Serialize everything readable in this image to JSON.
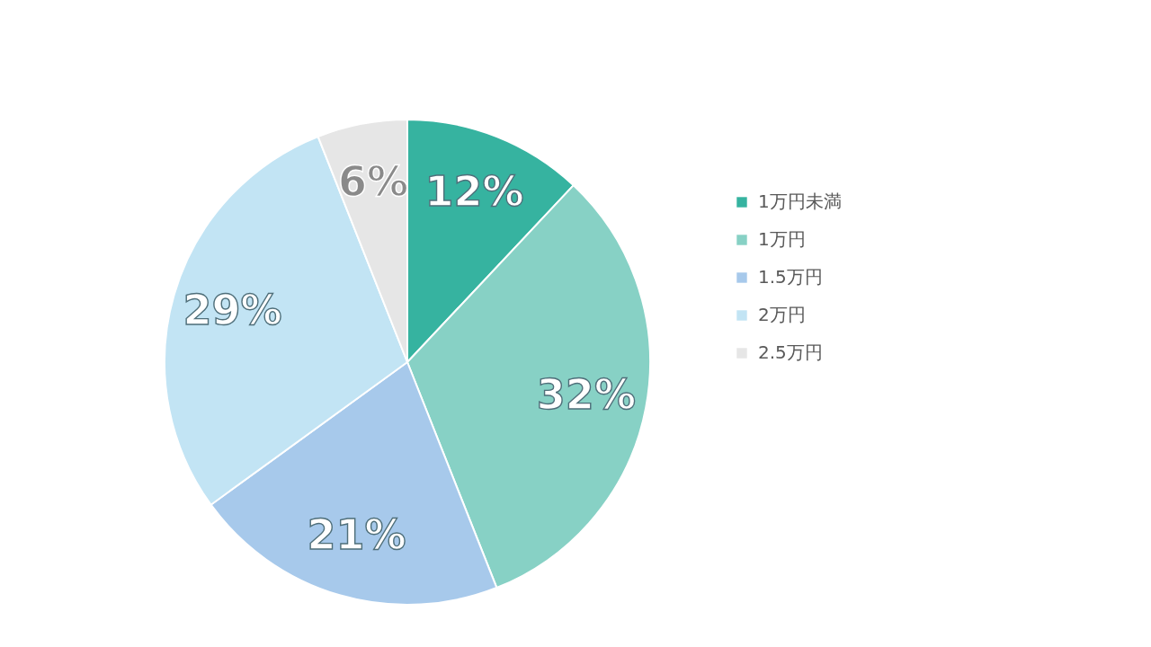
{
  "chart_data": {
    "type": "pie",
    "categories": [
      "1万円未満",
      "1万円",
      "1.5万円",
      "2万円",
      "2.5万円"
    ],
    "values": [
      12,
      32,
      21,
      29,
      6
    ],
    "colors": [
      "#36b3a0",
      "#87d1c5",
      "#a7c9eb",
      "#c2e4f4",
      "#e6e6e6"
    ],
    "value_labels": [
      "12%",
      "32%",
      "21%",
      "29%",
      "6%"
    ],
    "legend": "right"
  }
}
